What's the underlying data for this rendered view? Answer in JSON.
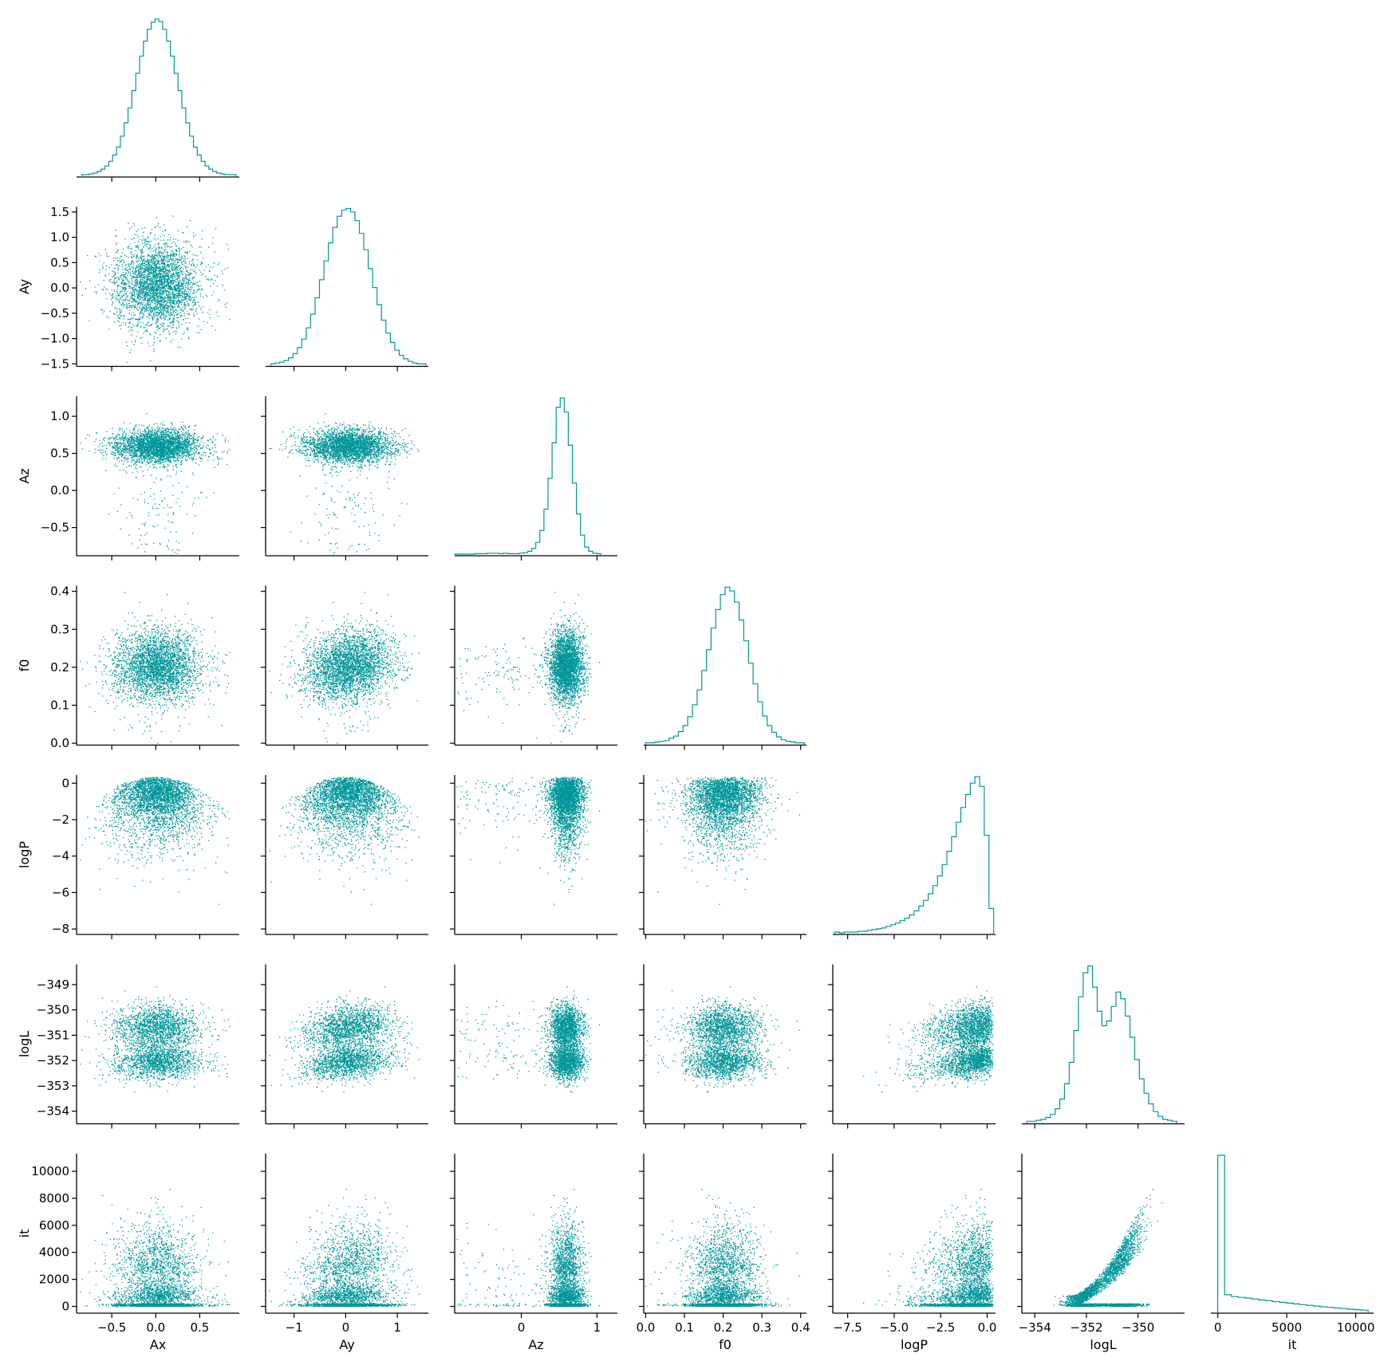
{
  "chart_data": {
    "type": "pairplot",
    "corner": true,
    "color": "#00969a",
    "variables": [
      "Ax",
      "Ay",
      "Az",
      "f0",
      "logP",
      "logL",
      "it"
    ],
    "axes": {
      "Ax": {
        "range": [
          -0.9,
          0.95
        ],
        "ticks": [
          -0.5,
          0.0,
          0.5
        ],
        "tick_labels": [
          "−0.5",
          "0.0",
          "0.5"
        ]
      },
      "Ay": {
        "range": [
          -1.55,
          1.6
        ],
        "ticks": [
          -1.5,
          -1.0,
          -0.5,
          0.0,
          0.5,
          1.0,
          1.5
        ],
        "tick_labels": [
          "−1.5",
          "−1.0",
          "−0.5",
          "0.0",
          "0.5",
          "1.0",
          "1.5"
        ],
        "x_ticks": [
          -1,
          0,
          1
        ],
        "x_tick_labels": [
          "−1",
          "0",
          "1"
        ]
      },
      "Az": {
        "range": [
          -0.88,
          1.27
        ],
        "ticks": [
          -0.5,
          0.0,
          0.5,
          1.0
        ],
        "tick_labels": [
          "−0.5",
          "0.0",
          "0.5",
          "1.0"
        ],
        "x_ticks": [
          0,
          1
        ],
        "x_tick_labels": [
          "0",
          "1"
        ]
      },
      "f0": {
        "range": [
          -0.005,
          0.415
        ],
        "ticks": [
          0.0,
          0.1,
          0.2,
          0.3,
          0.4
        ],
        "tick_labels": [
          "0.0",
          "0.1",
          "0.2",
          "0.3",
          "0.4"
        ]
      },
      "logP": {
        "range": [
          -8.3,
          0.45
        ],
        "ticks": [
          -8,
          -6,
          -4,
          -2,
          0
        ],
        "tick_labels": [
          "−8",
          "−6",
          "−4",
          "−2",
          "0"
        ],
        "x_ticks": [
          -7.5,
          -5.0,
          -2.5,
          0.0
        ],
        "x_tick_labels": [
          "−7.5",
          "−5.0",
          "−2.5",
          "0.0"
        ]
      },
      "logL": {
        "range": [
          -354.5,
          -348.2
        ],
        "ticks": [
          -354,
          -353,
          -352,
          -351,
          -350,
          -349
        ],
        "tick_labels": [
          "−354",
          "−353",
          "−352",
          "−351",
          "−350",
          "−349"
        ],
        "x_ticks": [
          -354,
          -352,
          -350
        ],
        "x_tick_labels": [
          "−354",
          "−352",
          "−350"
        ]
      },
      "it": {
        "range": [
          -500,
          11300
        ],
        "ticks": [
          0,
          2000,
          4000,
          6000,
          8000,
          10000
        ],
        "tick_labels": [
          "0",
          "2000",
          "4000",
          "6000",
          "8000",
          "10000"
        ],
        "x_ticks": [
          0,
          5000,
          10000
        ],
        "x_tick_labels": [
          "0",
          "5000",
          "10000"
        ]
      }
    },
    "histograms": {
      "Ax": {
        "edges": [
          -0.84,
          0.91
        ],
        "counts": [
          1,
          1,
          2,
          3,
          5,
          8,
          12,
          18,
          26,
          36,
          50,
          67,
          86,
          108,
          130,
          152,
          171,
          186,
          195,
          199,
          196,
          186,
          171,
          152,
          130,
          108,
          86,
          67,
          50,
          36,
          26,
          18,
          12,
          8,
          5,
          3,
          2,
          1,
          1,
          1
        ]
      },
      "Ay": {
        "edges": [
          -1.45,
          1.55
        ],
        "counts": [
          1,
          2,
          3,
          5,
          8,
          13,
          20,
          30,
          43,
          59,
          78,
          99,
          121,
          142,
          160,
          173,
          180,
          182,
          178,
          168,
          153,
          134,
          112,
          90,
          70,
          52,
          37,
          26,
          17,
          11,
          7,
          4,
          2,
          1,
          1
        ]
      },
      "Az": {
        "edges": [
          -0.88,
          1.05
        ],
        "counts": [
          0,
          0,
          0,
          0,
          0,
          1,
          1,
          1,
          2,
          2,
          2,
          1,
          2,
          1,
          1,
          1,
          2,
          3,
          6,
          12,
          25,
          50,
          95,
          160,
          235,
          310,
          330,
          300,
          230,
          150,
          85,
          40,
          15,
          6,
          2,
          1
        ]
      },
      "f0": {
        "edges": [
          0.0,
          0.41
        ],
        "counts": [
          1,
          1,
          2,
          3,
          4,
          7,
          10,
          16,
          24,
          36,
          52,
          72,
          98,
          126,
          155,
          180,
          200,
          210,
          205,
          190,
          166,
          138,
          108,
          80,
          56,
          37,
          24,
          15,
          9,
          5,
          3,
          2,
          1,
          1
        ]
      },
      "logP": {
        "edges": [
          -8.2,
          0.35
        ],
        "counts": [
          1,
          0,
          1,
          1,
          1,
          2,
          2,
          3,
          4,
          5,
          6,
          8,
          10,
          12,
          15,
          18,
          22,
          27,
          33,
          40,
          48,
          58,
          70,
          84,
          100,
          118,
          136,
          154,
          170,
          184,
          192,
          180,
          120,
          30
        ]
      },
      "logL": {
        "edges": [
          -354.3,
          -348.5
        ],
        "counts": [
          1,
          1,
          2,
          3,
          5,
          8,
          14,
          24,
          40,
          62,
          95,
          130,
          155,
          162,
          140,
          115,
          100,
          105,
          120,
          135,
          128,
          110,
          88,
          65,
          45,
          30,
          19,
          11,
          6,
          3,
          2,
          1
        ]
      },
      "it": {
        "edges": [
          0,
          10900
        ],
        "counts": [
          1300,
          140,
          125,
          118,
          112,
          104,
          96,
          90,
          83,
          77,
          70,
          64,
          58,
          52,
          46,
          40,
          35,
          30,
          25,
          20,
          16,
          12
        ]
      }
    }
  }
}
